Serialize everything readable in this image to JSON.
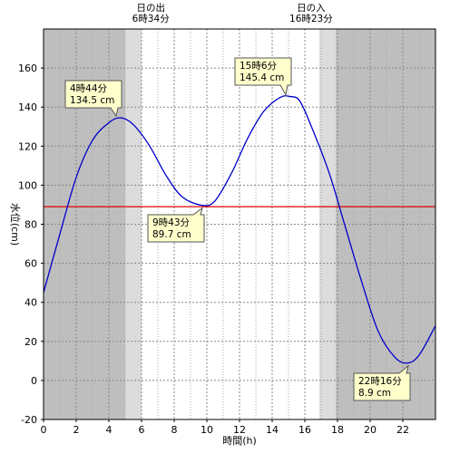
{
  "chart_data": {
    "type": "line",
    "xlabel": "時間(h)",
    "ylabel": "水位(cm)",
    "xlim": [
      0,
      24
    ],
    "ylim": [
      -20,
      180
    ],
    "xticks": [
      0,
      2,
      4,
      6,
      8,
      10,
      12,
      14,
      16,
      18,
      20,
      22
    ],
    "yticks": [
      -20,
      0,
      20,
      40,
      60,
      80,
      100,
      120,
      140,
      160
    ],
    "grid": true,
    "reference_line": {
      "y": 89.0,
      "color": "#dd0000"
    },
    "series": [
      {
        "color": "#0000cc",
        "x": [
          0,
          1,
          2,
          3,
          4,
          4.73,
          5.5,
          6.5,
          7.5,
          8.5,
          9.72,
          10.5,
          11.5,
          12.5,
          13.5,
          14.5,
          15.1,
          15.7,
          16.5,
          17.5,
          18.5,
          19.5,
          20.5,
          21.5,
          22.27,
          23,
          24
        ],
        "y": [
          45,
          75,
          104,
          123,
          132,
          134.5,
          131,
          120,
          105,
          94,
          89.7,
          92,
          106,
          124,
          138,
          145,
          145.4,
          143,
          128,
          106,
          78,
          50,
          25,
          12,
          8.9,
          13,
          28
        ]
      }
    ],
    "annotations": [
      {
        "x": 4.73,
        "y": 134.5,
        "time": "4時44分",
        "value": "134.5 cm"
      },
      {
        "x": 9.72,
        "y": 89.7,
        "time": "9時43分",
        "value": "89.7 cm"
      },
      {
        "x": 15.1,
        "y": 145.4,
        "time": "15時6分",
        "value": "145.4 cm"
      },
      {
        "x": 22.27,
        "y": 8.9,
        "time": "22時16分",
        "value": "8.9 cm"
      }
    ],
    "sunrise": {
      "x": 6.567,
      "label": "日の出",
      "time": "6時34分"
    },
    "sunset": {
      "x": 16.383,
      "label": "日の入",
      "time": "16時23分"
    },
    "shading": {
      "night_color": "#bebebe",
      "twilight_color": "#dcdcdc",
      "day_color": "#ffffff",
      "morning_twilight": [
        5.0,
        6.0
      ],
      "evening_twilight": [
        16.9,
        17.9
      ]
    }
  }
}
